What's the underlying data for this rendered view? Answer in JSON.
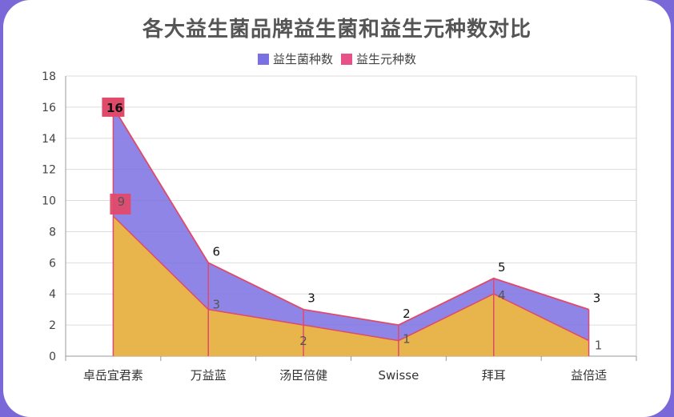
{
  "chart_data": {
    "type": "area",
    "title": "各大益生菌品牌益生菌和益生元种数对比",
    "categories": [
      "卓岳宜君素",
      "万益蓝",
      "汤臣倍健",
      "Swisse",
      "拜耳",
      "益倍适"
    ],
    "ylim": [
      0,
      18
    ],
    "yticks": [
      0,
      2,
      4,
      6,
      8,
      10,
      12,
      14,
      16,
      18
    ],
    "grid": true,
    "legend_position": "top",
    "series": [
      {
        "name": "益生菌种数",
        "values": [
          16,
          6,
          3,
          2,
          5,
          3
        ],
        "color": "#7b70e2"
      },
      {
        "name": "益生元种数",
        "values": [
          9,
          3,
          2,
          1,
          4,
          1
        ],
        "color": "#f2b93b"
      }
    ],
    "border_color": "#e04a6a"
  }
}
